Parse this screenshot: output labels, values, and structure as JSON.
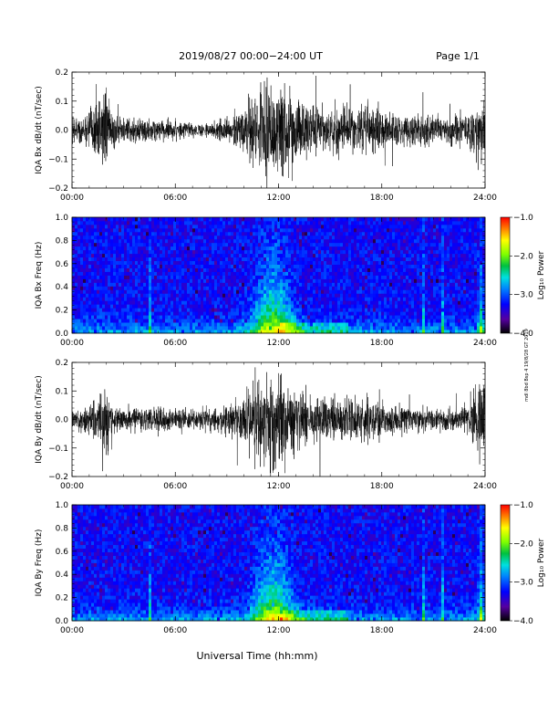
{
  "header": {
    "title": "2019/08/27  00:00−24:00 UT",
    "page": "Page 1/1"
  },
  "xlabel": "Universal Time (hh:mm)",
  "side_note": "mdl 8bd Bsp 4 19/8/28 GT 2019",
  "colors": {
    "trace": "#000000",
    "colormap": [
      "#000000",
      "#5500a0",
      "#0000ff",
      "#0080ff",
      "#00e0e0",
      "#00c040",
      "#80ff00",
      "#ffff00",
      "#ff8000",
      "#ff0000"
    ]
  },
  "chart_data": [
    {
      "type": "line",
      "ylabel": "IQA Bx dB/dt (nT/sec)",
      "x_ticks": [
        "00:00",
        "06:00",
        "12:00",
        "18:00",
        "24:00"
      ],
      "xlim": [
        0,
        24
      ],
      "ylim": [
        -0.2,
        0.2
      ],
      "y_ticks": [
        "0.2",
        "0.1",
        "0.0",
        "−0.1",
        "−0.2"
      ],
      "series": [
        {
          "x": [
            0,
            1,
            1.5,
            2,
            2.5,
            3,
            4,
            5,
            6,
            7,
            8,
            9,
            10,
            10.5,
            11,
            11.5,
            12,
            12.5,
            13,
            14,
            15,
            16,
            17,
            18,
            19,
            20,
            21,
            22,
            23,
            23.5,
            24
          ],
          "y_amp": [
            0.06,
            0.07,
            0.16,
            0.14,
            0.07,
            0.05,
            0.05,
            0.05,
            0.04,
            0.03,
            0.03,
            0.05,
            0.1,
            0.15,
            0.2,
            0.2,
            0.2,
            0.2,
            0.14,
            0.1,
            0.08,
            0.09,
            0.1,
            0.09,
            0.06,
            0.07,
            0.06,
            0.06,
            0.07,
            0.12,
            0.15
          ]
        }
      ]
    },
    {
      "type": "heatmap",
      "ylabel": "IQA Bx Freq (Hz)",
      "x_ticks": [
        "00:00",
        "06:00",
        "12:00",
        "18:00",
        "24:00"
      ],
      "xlim": [
        0,
        24
      ],
      "ylim": [
        0,
        1.0
      ],
      "y_ticks": [
        "1.0",
        "0.8",
        "0.6",
        "0.4",
        "0.2",
        "0.0"
      ],
      "colorbar": {
        "label": "Log₁₀ Power",
        "range": [
          -4.0,
          -1.0
        ],
        "ticks": [
          "−1.0",
          "−2.0",
          "−3.0",
          "−4.0"
        ]
      }
    },
    {
      "type": "line",
      "ylabel": "IQA By dB/dt (nT/sec)",
      "x_ticks": [
        "00:00",
        "06:00",
        "12:00",
        "18:00",
        "24:00"
      ],
      "xlim": [
        0,
        24
      ],
      "ylim": [
        -0.2,
        0.2
      ],
      "y_ticks": [
        "0.2",
        "0.1",
        "0.0",
        "−0.1",
        "−0.2"
      ],
      "series": [
        {
          "x": [
            0,
            1,
            1.5,
            2,
            2.5,
            3,
            4,
            5,
            6,
            7,
            8,
            9,
            10,
            10.5,
            11,
            11.5,
            12,
            12.5,
            13,
            14,
            15,
            16,
            17,
            18,
            19,
            20,
            21,
            22,
            23,
            23.5,
            24
          ],
          "y_amp": [
            0.04,
            0.05,
            0.12,
            0.15,
            0.06,
            0.05,
            0.05,
            0.06,
            0.05,
            0.05,
            0.05,
            0.07,
            0.1,
            0.15,
            0.2,
            0.2,
            0.2,
            0.2,
            0.14,
            0.1,
            0.09,
            0.09,
            0.1,
            0.08,
            0.06,
            0.05,
            0.05,
            0.05,
            0.06,
            0.14,
            0.16
          ]
        }
      ]
    },
    {
      "type": "heatmap",
      "ylabel": "IQA By Freq (Hz)",
      "x_ticks": [
        "00:00",
        "06:00",
        "12:00",
        "18:00",
        "24:00"
      ],
      "xlim": [
        0,
        24
      ],
      "ylim": [
        0,
        1.0
      ],
      "y_ticks": [
        "1.0",
        "0.8",
        "0.6",
        "0.4",
        "0.2",
        "0.0"
      ],
      "colorbar": {
        "label": "Log₁₀ Power",
        "range": [
          -4.0,
          -1.0
        ],
        "ticks": [
          "−1.0",
          "−2.0",
          "−3.0",
          "−4.0"
        ]
      }
    }
  ]
}
